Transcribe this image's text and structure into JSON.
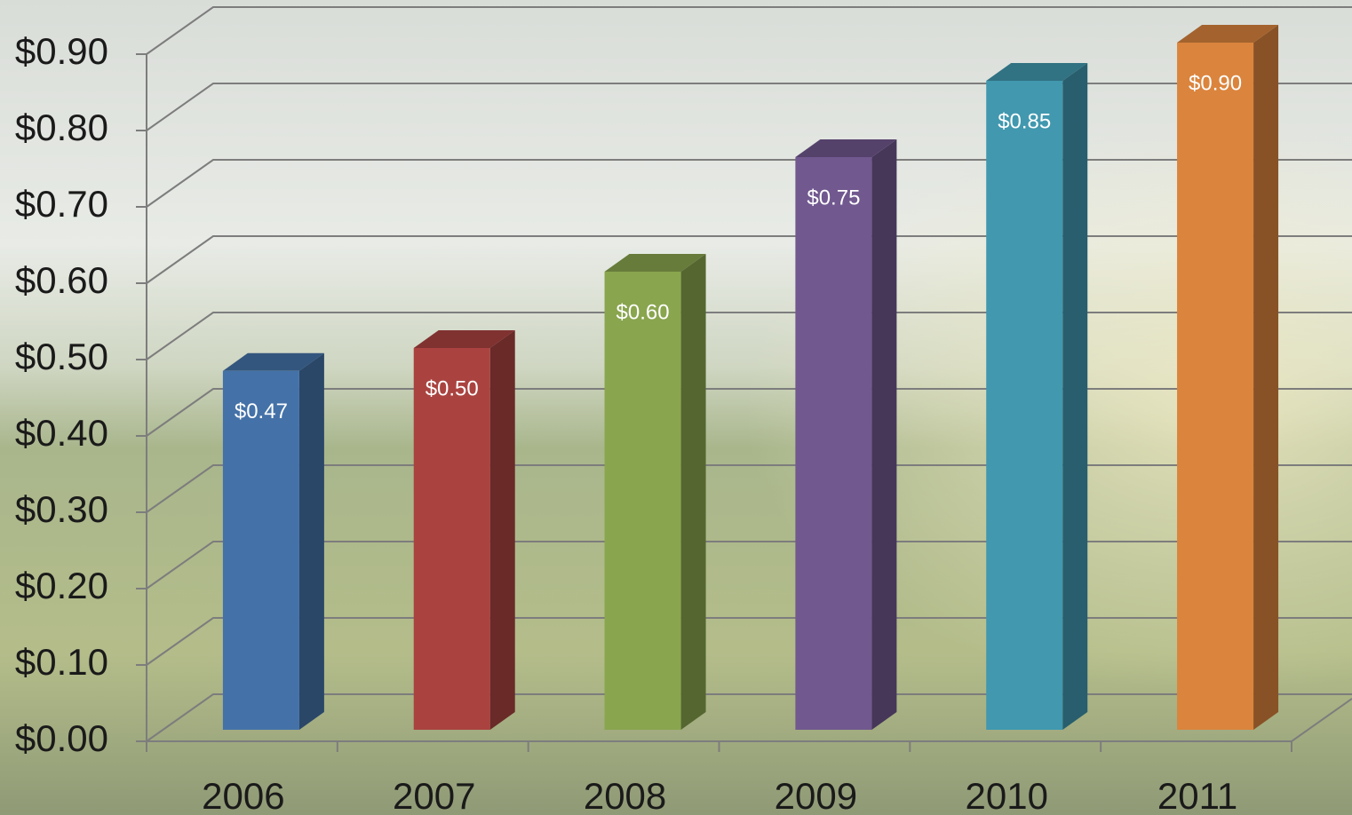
{
  "chart_data": {
    "type": "bar3d",
    "categories": [
      "2006",
      "2007",
      "2008",
      "2009",
      "2010",
      "2011"
    ],
    "values": [
      0.47,
      0.5,
      0.6,
      0.75,
      0.85,
      0.9
    ],
    "value_labels": [
      "$0.47",
      "$0.50",
      "$0.60",
      "$0.75",
      "$0.85",
      "$0.90"
    ],
    "colors": [
      "#4472a8",
      "#aa4340",
      "#89a54e",
      "#71588f",
      "#4198af",
      "#db843d"
    ],
    "ylim": [
      0,
      0.9
    ],
    "yticks": [
      {
        "value": 0,
        "label": "$0.00"
      },
      {
        "value": 0.1,
        "label": "$0.10"
      },
      {
        "value": 0.2,
        "label": "$0.20"
      },
      {
        "value": 0.3,
        "label": "$0.30"
      },
      {
        "value": 0.4,
        "label": "$0.40"
      },
      {
        "value": 0.5,
        "label": "$0.50"
      },
      {
        "value": 0.6,
        "label": "$0.60"
      },
      {
        "value": 0.7,
        "label": "$0.70"
      },
      {
        "value": 0.8,
        "label": "$0.80"
      },
      {
        "value": 0.9,
        "label": "$0.90"
      }
    ],
    "grid": true
  }
}
